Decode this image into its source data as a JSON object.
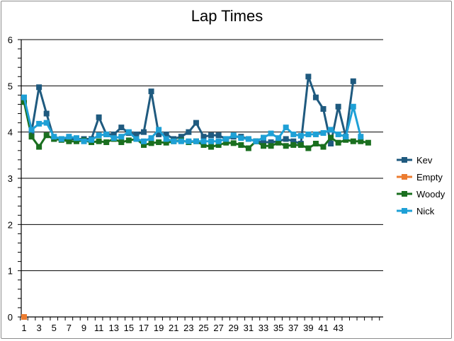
{
  "chart_data": {
    "type": "line",
    "title": "Lap Times",
    "xlabel": "",
    "ylabel": "",
    "ylim": [
      0,
      6
    ],
    "y_ticks": [
      "0",
      "1",
      "2",
      "3",
      "4",
      "5",
      "6"
    ],
    "x_tick_labels": [
      "1",
      "3",
      "5",
      "7",
      "9",
      "11",
      "13",
      "15",
      "17",
      "19",
      "21",
      "23",
      "25",
      "27",
      "29",
      "31",
      "33",
      "35",
      "37",
      "39",
      "41",
      "43"
    ],
    "x_count": 48,
    "grid": "horizontal",
    "legend_position": "right",
    "series": [
      {
        "name": "Kev",
        "color": "#1f5a7f",
        "values": [
          4.72,
          4.0,
          4.97,
          4.4,
          3.85,
          3.85,
          3.85,
          3.85,
          3.85,
          3.85,
          4.32,
          3.95,
          3.95,
          4.1,
          3.98,
          3.95,
          4.0,
          4.88,
          3.95,
          3.95,
          3.85,
          3.9,
          4.0,
          4.2,
          3.9,
          3.93,
          3.93,
          3.85,
          3.9,
          3.9,
          3.85,
          3.8,
          3.78,
          3.78,
          3.8,
          3.85,
          3.8,
          3.75,
          5.2,
          4.75,
          4.5,
          3.75,
          4.55,
          3.9,
          5.1
        ]
      },
      {
        "name": "Empty",
        "color": "#ec7c30",
        "values": [
          0
        ]
      },
      {
        "name": "Woody",
        "color": "#1a6f1f",
        "values": [
          4.65,
          3.9,
          3.68,
          3.93,
          3.85,
          3.83,
          3.8,
          3.8,
          3.82,
          3.78,
          3.8,
          3.78,
          3.85,
          3.78,
          3.82,
          3.85,
          3.72,
          3.76,
          3.78,
          3.77,
          3.8,
          3.82,
          3.78,
          3.8,
          3.72,
          3.68,
          3.72,
          3.77,
          3.76,
          3.72,
          3.65,
          3.8,
          3.7,
          3.7,
          3.77,
          3.7,
          3.72,
          3.72,
          3.65,
          3.75,
          3.68,
          3.88,
          3.77,
          3.83,
          3.8,
          3.8,
          3.77
        ]
      },
      {
        "name": "Nick",
        "color": "#1ea0d6",
        "values": [
          4.75,
          4.05,
          4.18,
          4.2,
          3.9,
          3.85,
          3.9,
          3.87,
          3.8,
          3.83,
          3.93,
          3.95,
          3.87,
          3.9,
          4.0,
          3.85,
          3.8,
          3.87,
          4.05,
          3.85,
          3.8,
          3.8,
          3.8,
          3.8,
          3.8,
          3.8,
          3.8,
          3.85,
          3.93,
          3.87,
          3.85,
          3.8,
          3.88,
          3.97,
          3.87,
          4.1,
          3.95,
          3.92,
          3.95,
          3.95,
          3.98,
          4.05,
          3.95,
          3.9,
          4.55,
          3.9
        ]
      }
    ]
  }
}
